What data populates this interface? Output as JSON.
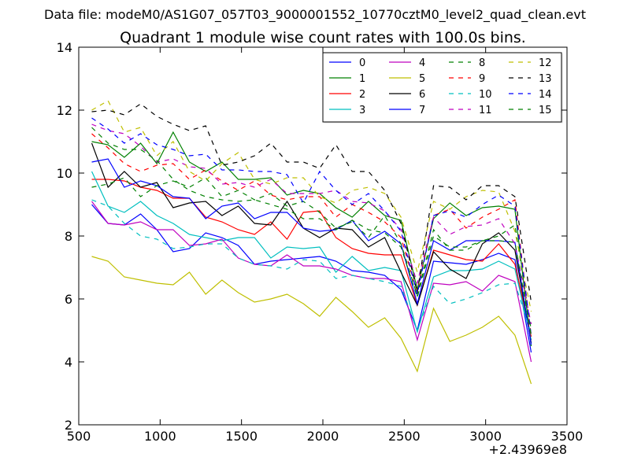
{
  "chart_data": {
    "type": "line",
    "suptitle": "Data file: modeM0/AS1G07_057T03_9000001552_10770cztM0_level2_quad_clean.evt",
    "title": "Quadrant 1 module wise count rates with 100.0s bins.",
    "xlabel": "",
    "ylabel": "",
    "x_offset_label": "+2.43969e8",
    "xlim": [
      500,
      3500
    ],
    "ylim": [
      2,
      14
    ],
    "xticks": [
      500,
      1000,
      1500,
      2000,
      2500,
      3000,
      3500
    ],
    "yticks": [
      2,
      4,
      6,
      8,
      10,
      12,
      14
    ],
    "grid": false,
    "legend": {
      "placement": "top-right",
      "columns": 4
    },
    "x": [
      580,
      680,
      780,
      880,
      980,
      1080,
      1180,
      1280,
      1380,
      1480,
      1580,
      1680,
      1780,
      1880,
      1980,
      2080,
      2180,
      2280,
      2380,
      2480,
      2580,
      2680,
      2780,
      2880,
      2980,
      3080,
      3180,
      3280
    ],
    "series": [
      {
        "name": "0",
        "color": "#0000ff",
        "dash": "solid",
        "values": [
          9.0,
          8.4,
          8.35,
          8.7,
          8.2,
          7.5,
          7.6,
          8.1,
          7.95,
          7.7,
          7.1,
          7.2,
          7.25,
          7.3,
          7.35,
          7.2,
          6.9,
          6.85,
          6.75,
          6.3,
          5.0,
          7.2,
          7.15,
          7.1,
          7.25,
          7.45,
          7.25,
          4.3
        ]
      },
      {
        "name": "1",
        "color": "#008000",
        "dash": "solid",
        "values": [
          11.0,
          10.9,
          10.5,
          10.95,
          10.3,
          11.3,
          10.35,
          10.05,
          10.35,
          9.8,
          9.8,
          9.85,
          9.3,
          9.45,
          9.35,
          8.9,
          8.6,
          9.1,
          8.65,
          8.5,
          6.3,
          8.55,
          9.05,
          8.65,
          8.9,
          8.95,
          8.85,
          4.5
        ]
      },
      {
        "name": "2",
        "color": "#ff0000",
        "dash": "solid",
        "values": [
          9.8,
          9.8,
          9.75,
          9.55,
          9.45,
          9.2,
          9.2,
          8.6,
          8.45,
          8.2,
          8.05,
          8.45,
          7.9,
          8.75,
          8.8,
          7.95,
          7.6,
          7.45,
          7.4,
          7.4,
          5.8,
          7.55,
          7.4,
          7.25,
          7.2,
          7.75,
          7.1,
          4.8
        ]
      },
      {
        "name": "3",
        "color": "#00bfbf",
        "dash": "solid",
        "values": [
          10.05,
          8.95,
          8.75,
          9.1,
          8.65,
          8.4,
          8.05,
          7.95,
          7.85,
          7.95,
          7.95,
          7.3,
          7.65,
          7.6,
          7.65,
          6.85,
          7.35,
          6.9,
          7.0,
          6.9,
          4.95,
          6.7,
          6.9,
          6.9,
          6.95,
          7.2,
          6.95,
          4.7
        ]
      },
      {
        "name": "4",
        "color": "#bf00bf",
        "dash": "solid",
        "values": [
          9.1,
          8.4,
          8.35,
          8.45,
          8.2,
          8.2,
          7.7,
          7.75,
          7.9,
          7.3,
          7.1,
          7.05,
          7.4,
          7.05,
          7.05,
          6.95,
          6.75,
          6.65,
          6.65,
          6.55,
          4.7,
          6.5,
          6.45,
          6.55,
          6.25,
          6.75,
          6.55,
          4.0
        ]
      },
      {
        "name": "5",
        "color": "#bfbf00",
        "dash": "solid",
        "values": [
          7.35,
          7.2,
          6.7,
          6.6,
          6.5,
          6.45,
          6.85,
          6.15,
          6.6,
          6.2,
          5.9,
          6.0,
          6.15,
          5.85,
          5.45,
          6.05,
          5.6,
          5.1,
          5.4,
          4.75,
          3.7,
          5.7,
          4.65,
          4.85,
          5.1,
          5.45,
          4.85,
          3.3
        ]
      },
      {
        "name": "6",
        "color": "#000000",
        "dash": "solid",
        "values": [
          10.95,
          9.55,
          10.05,
          9.55,
          9.7,
          8.9,
          9.05,
          9.1,
          8.65,
          8.95,
          8.4,
          8.35,
          9.1,
          8.25,
          7.95,
          8.25,
          8.2,
          7.65,
          7.95,
          6.85,
          5.8,
          7.5,
          6.95,
          6.65,
          7.75,
          8.1,
          7.55,
          4.6
        ]
      },
      {
        "name": "7",
        "color": "#0000ff",
        "dash": "solid",
        "values": [
          10.35,
          10.45,
          9.55,
          9.75,
          9.6,
          9.25,
          9.2,
          8.55,
          8.95,
          9.05,
          8.55,
          8.75,
          8.75,
          8.25,
          8.15,
          8.2,
          8.5,
          7.85,
          8.15,
          7.75,
          5.85,
          7.85,
          7.55,
          7.85,
          7.85,
          7.85,
          7.8,
          4.55
        ]
      },
      {
        "name": "8",
        "color": "#008000",
        "dash": "dashed",
        "values": [
          9.55,
          9.65,
          9.85,
          9.25,
          9.6,
          9.75,
          9.55,
          9.85,
          9.25,
          9.45,
          9.15,
          9.35,
          8.95,
          9.1,
          8.75,
          8.25,
          8.45,
          7.95,
          8.65,
          7.75,
          6.1,
          8.2,
          7.55,
          7.55,
          7.85,
          8.0,
          8.35,
          5.0
        ]
      },
      {
        "name": "9",
        "color": "#ff0000",
        "dash": "dashed",
        "values": [
          11.25,
          10.8,
          10.3,
          10.05,
          10.25,
          10.3,
          9.8,
          10.1,
          9.75,
          9.45,
          9.75,
          9.3,
          9.15,
          9.25,
          9.25,
          8.6,
          9.0,
          8.75,
          8.45,
          7.95,
          6.2,
          8.65,
          8.85,
          8.25,
          8.6,
          8.85,
          9.15,
          4.8
        ]
      },
      {
        "name": "10",
        "color": "#00bfbf",
        "dash": "dashed",
        "values": [
          9.15,
          8.95,
          8.4,
          8.0,
          7.9,
          7.6,
          7.65,
          7.75,
          7.75,
          7.3,
          7.1,
          7.05,
          6.95,
          7.25,
          7.2,
          6.65,
          6.75,
          6.65,
          6.55,
          6.4,
          5.0,
          6.4,
          5.85,
          6.0,
          6.2,
          6.45,
          6.5,
          4.9
        ]
      },
      {
        "name": "11",
        "color": "#bf00bf",
        "dash": "dashed",
        "values": [
          11.55,
          11.35,
          11.25,
          10.85,
          10.35,
          10.45,
          10.2,
          10.15,
          9.65,
          9.7,
          9.55,
          9.8,
          9.35,
          9.35,
          9.35,
          9.45,
          9.1,
          9.05,
          8.8,
          8.2,
          6.5,
          8.6,
          8.05,
          8.3,
          8.35,
          8.55,
          7.75,
          5.2
        ]
      },
      {
        "name": "12",
        "color": "#bfbf00",
        "dash": "dashed",
        "values": [
          12.0,
          12.3,
          11.3,
          11.45,
          10.55,
          11.0,
          10.05,
          9.75,
          10.3,
          10.65,
          9.8,
          9.65,
          9.85,
          9.85,
          9.25,
          9.05,
          9.45,
          9.55,
          9.35,
          8.6,
          6.85,
          9.1,
          8.85,
          9.25,
          9.45,
          9.4,
          8.15,
          5.6
        ]
      },
      {
        "name": "13",
        "color": "#000000",
        "dash": "dashed",
        "values": [
          11.95,
          12.0,
          11.85,
          12.2,
          11.8,
          11.55,
          11.35,
          11.5,
          10.25,
          10.35,
          10.55,
          10.95,
          10.35,
          10.35,
          10.15,
          10.9,
          10.05,
          10.05,
          9.45,
          8.4,
          6.2,
          9.6,
          9.55,
          9.15,
          9.6,
          9.6,
          9.25,
          5.9
        ]
      },
      {
        "name": "14",
        "color": "#0000ff",
        "dash": "dashed",
        "values": [
          11.75,
          11.4,
          10.95,
          11.25,
          10.9,
          10.75,
          10.55,
          10.6,
          10.1,
          10.1,
          10.05,
          10.05,
          9.95,
          9.05,
          10.05,
          9.45,
          9.0,
          9.35,
          8.8,
          8.15,
          6.15,
          8.65,
          8.8,
          8.6,
          9.0,
          9.3,
          8.95,
          4.85
        ]
      },
      {
        "name": "15",
        "color": "#008000",
        "dash": "dashed",
        "values": [
          11.45,
          10.95,
          10.75,
          10.75,
          10.4,
          9.8,
          9.45,
          9.25,
          9.15,
          9.1,
          9.15,
          9.0,
          8.85,
          8.55,
          8.55,
          8.2,
          8.5,
          8.2,
          8.1,
          7.65,
          6.05,
          8.0,
          7.65,
          7.65,
          7.85,
          7.85,
          7.8,
          4.85
        ]
      }
    ]
  }
}
